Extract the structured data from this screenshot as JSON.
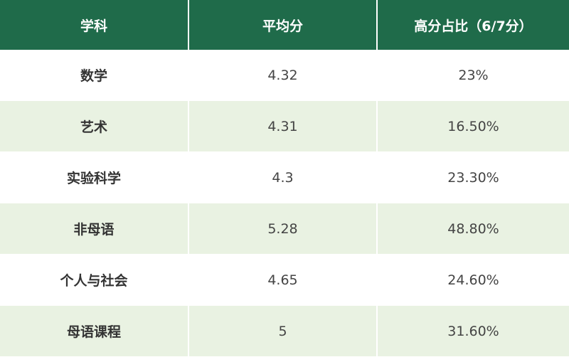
{
  "table": {
    "headers": [
      "学科",
      "平均分",
      "高分占比（6/7分）"
    ],
    "rows": [
      {
        "subject": "数学",
        "avg": "4.32",
        "pct": "23%"
      },
      {
        "subject": "艺术",
        "avg": "4.31",
        "pct": "16.50%"
      },
      {
        "subject": "实验科学",
        "avg": "4.3",
        "pct": "23.30%"
      },
      {
        "subject": "非母语",
        "avg": "5.28",
        "pct": "48.80%"
      },
      {
        "subject": "个人与社会",
        "avg": "4.65",
        "pct": "24.60%"
      },
      {
        "subject": "母语课程",
        "avg": "5",
        "pct": "31.60%"
      }
    ]
  },
  "colors": {
    "header_bg": "#1f6b4a",
    "header_text": "#ffffff",
    "stripe_bg": "#e9f2e2",
    "row_bg": "#ffffff"
  }
}
